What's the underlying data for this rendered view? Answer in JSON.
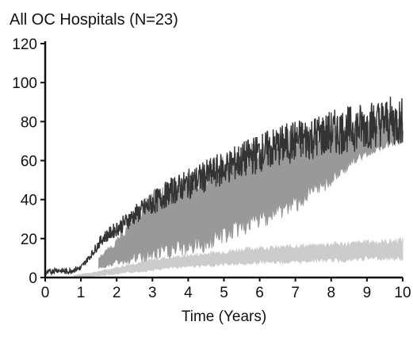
{
  "chart_data": {
    "type": "line",
    "title": "All OC Hospitals (N=23)",
    "xlabel": "Time (Years)",
    "ylabel": "",
    "xlim": [
      0,
      10
    ],
    "ylim": [
      0,
      120
    ],
    "xticks": [
      "0",
      "1",
      "2",
      "3",
      "4",
      "5",
      "6",
      "7",
      "8",
      "9",
      "10"
    ],
    "yticks": [
      "0",
      "20",
      "40",
      "60",
      "80",
      "100",
      "120"
    ],
    "grid": false,
    "legend": "none",
    "series": [
      {
        "color": "#333333",
        "style": "noisy line",
        "x": [
          0,
          0.3,
          0.6,
          1.0,
          1.3,
          1.6,
          2.0,
          2.5,
          3.0,
          3.5,
          4.0,
          4.5,
          5.0,
          5.5,
          6.0,
          6.5,
          7.0,
          7.5,
          8.0,
          8.5,
          9.0,
          9.5,
          10.0
        ],
        "values": [
          2,
          4,
          3,
          5,
          12,
          20,
          25,
          32,
          38,
          44,
          48,
          52,
          56,
          60,
          64,
          67,
          70,
          72,
          74,
          76,
          78,
          80,
          80
        ]
      },
      {
        "color": "#999999",
        "style": "band",
        "x": [
          1.5,
          2.0,
          2.5,
          3.0,
          3.5,
          4.0,
          4.5,
          5.0,
          5.5,
          6.0,
          6.5,
          7.0,
          7.5,
          8.0,
          8.5,
          9.0,
          9.5,
          10.0
        ],
        "lower": [
          5,
          8,
          10,
          12,
          14,
          16,
          18,
          22,
          26,
          30,
          34,
          38,
          44,
          50,
          58,
          64,
          68,
          70
        ],
        "upper": [
          10,
          18,
          30,
          40,
          44,
          48,
          52,
          56,
          60,
          64,
          67,
          70,
          72,
          74,
          76,
          78,
          80,
          80
        ]
      },
      {
        "color": "#cccccc",
        "style": "band",
        "x": [
          0.8,
          1.5,
          2.0,
          2.5,
          3.0,
          3.5,
          4.0,
          4.5,
          5.0,
          5.5,
          6.0,
          6.5,
          7.0,
          7.5,
          8.0,
          8.5,
          9.0,
          9.5,
          10.0
        ],
        "lower": [
          0,
          1,
          2,
          3,
          4,
          5,
          6,
          6,
          7,
          7,
          8,
          8,
          8,
          9,
          9,
          9,
          10,
          10,
          10
        ],
        "upper": [
          1,
          3,
          5,
          7,
          9,
          10,
          11,
          12,
          13,
          14,
          15,
          15,
          16,
          16,
          17,
          17,
          18,
          18,
          19
        ]
      }
    ]
  }
}
